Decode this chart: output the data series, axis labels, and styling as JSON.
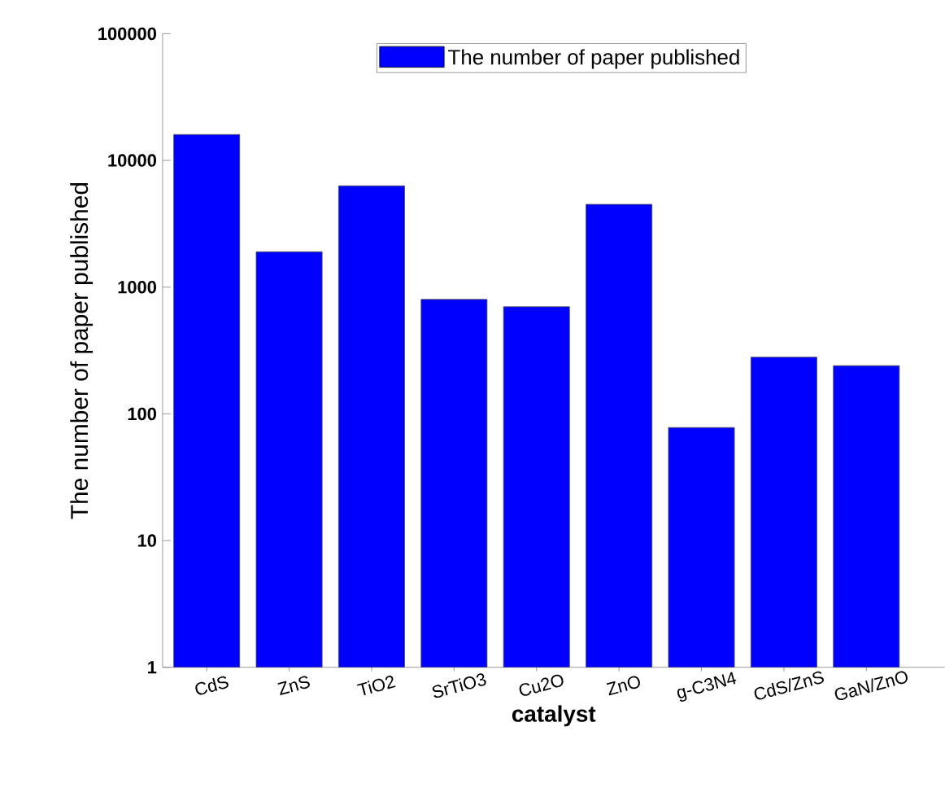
{
  "chart_data": {
    "type": "bar",
    "xlabel": "catalyst",
    "ylabel": "The number of paper published",
    "categories": [
      "CdS",
      "ZnS",
      "TiO2",
      "SrTiO3",
      "Cu2O",
      "ZnO",
      "g-C3N4",
      "CdS/ZnS",
      "GaN/ZnO"
    ],
    "series": [
      {
        "name": "The number of paper published",
        "color": "#0000ff",
        "values": [
          16000,
          1900,
          6300,
          800,
          700,
          4500,
          78,
          280,
          240
        ]
      }
    ],
    "log": true,
    "ylim": [
      1,
      100000
    ],
    "yticks": [
      1,
      10,
      100,
      1000,
      10000,
      100000
    ],
    "legend": "top"
  }
}
